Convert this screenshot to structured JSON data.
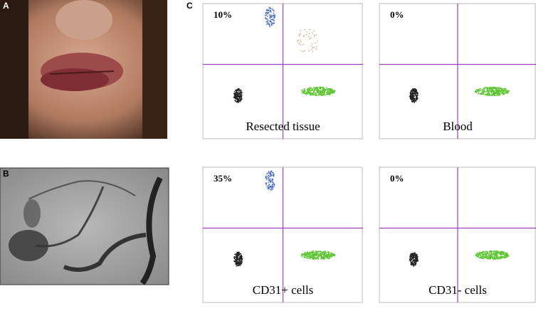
{
  "panel_labels": [
    "A",
    "B",
    "C"
  ],
  "plots": [
    {
      "percent": "10%",
      "caption": "Resected tissue"
    },
    {
      "percent": "0%",
      "caption": "Blood"
    },
    {
      "percent": "35%",
      "caption": "CD31+ cells"
    },
    {
      "percent": "0%",
      "caption": "CD31- cells"
    }
  ]
}
